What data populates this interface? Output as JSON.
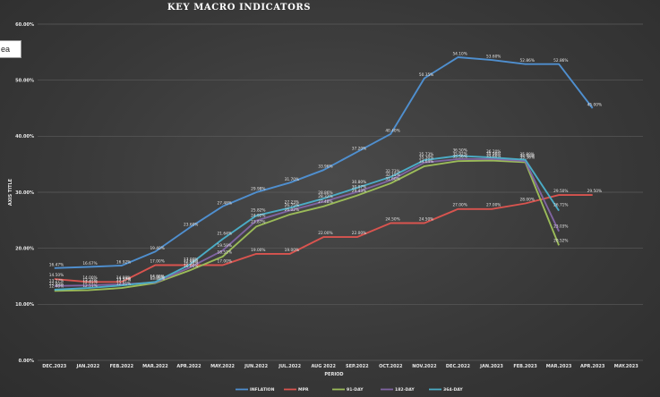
{
  "side_tab": {
    "label": "ea"
  },
  "chart_data": {
    "type": "line",
    "title": "KEY MACRO INDICATORS",
    "xlabel": "PERIOD",
    "ylabel": "AXIS TITLE",
    "ylim": [
      0,
      60
    ],
    "y_ticks": [
      "0.00%",
      "10.00%",
      "20.00%",
      "30.00%",
      "40.00%",
      "50.00%",
      "60.00%"
    ],
    "categories": [
      "DEC.2023",
      "JAN.2022",
      "FEB.2022",
      "MAR.2022",
      "APR.2022",
      "MAY.2022",
      "JUN.2022",
      "JUL.2022",
      "AUG 2022",
      "SEP.2022",
      "OCT.2022",
      "NOV.2022",
      "DEC.2022",
      "JAN.2023",
      "FEB.2023",
      "MAR.2023",
      "APR.2023",
      "MAY.2023"
    ],
    "grid": true,
    "legend": "bottom",
    "series": [
      {
        "name": "INFLATION",
        "color": "#4f8fcf",
        "values": [
          16.47,
          16.67,
          16.92,
          19.4,
          23.6,
          27.48,
          29.98,
          31.7,
          33.96,
          37.2,
          40.4,
          50.35,
          54.1,
          53.6,
          52.86,
          52.86,
          45.0,
          null
        ],
        "labels": [
          "16.47%",
          "16.67%",
          "16.92%",
          "19.40%",
          "23.60%",
          "27.48%",
          "29.98%",
          "31.70%",
          "33.96%",
          "37.20%",
          "40.40%",
          "50.35%",
          "54.10%",
          "53.60%",
          "52.86%",
          "52.86%",
          "45.00%",
          null
        ]
      },
      {
        "name": "MPR",
        "color": "#d9544f",
        "values": [
          14.5,
          14.0,
          14.0,
          17.0,
          17.0,
          17.0,
          19.0,
          19.0,
          22.0,
          22.0,
          24.5,
          24.5,
          27.0,
          27.0,
          28.0,
          29.5,
          29.5,
          null
        ],
        "labels": [
          "14.50%",
          "14.00%",
          "14.00%",
          "17.00%",
          "17.00%",
          "17.00%",
          "19.00%",
          "19.00%",
          "22.00%",
          "22.00%",
          "24.50%",
          "24.50%",
          "27.00%",
          "27.00%",
          "28.00%",
          "29.50%",
          "29.50%",
          null
        ]
      },
      {
        "name": "91-DAY",
        "color": "#9bbb59",
        "values": [
          12.4,
          12.51,
          12.91,
          13.8,
          16.0,
          18.51,
          23.87,
          26.02,
          27.48,
          29.43,
          31.6,
          34.64,
          35.56,
          35.66,
          35.36,
          20.52,
          null,
          null
        ],
        "labels": [
          "12.40%",
          "12.51%",
          "12.91%",
          "13.80%",
          "16.00%",
          "18.51%",
          "23.87%",
          "26.02%",
          "27.48%",
          "29.43%",
          "31.60%",
          "34.64%",
          "35.56%",
          "35.66%",
          "35.36%",
          "20.52%",
          null,
          null
        ]
      },
      {
        "name": "182-DAY",
        "color": "#8064a2",
        "values": [
          13.27,
          13.37,
          13.57,
          13.9,
          16.5,
          19.59,
          24.92,
          26.75,
          28.32,
          30.07,
          32.15,
          35.3,
          35.92,
          35.96,
          35.56,
          23.03,
          null,
          null
        ],
        "labels": [
          "13.27%",
          "13.37%",
          "13.57%",
          "13.90%",
          "16.50%",
          "19.59%",
          "24.92%",
          "26.75%",
          "28.32%",
          "30.07%",
          "32.15%",
          "35.30%",
          "35.92%",
          "35.96%",
          "35.56%",
          "23.03%",
          null,
          null
        ]
      },
      {
        "name": "364-DAY",
        "color": "#4bacc6",
        "values": [
          12.6,
          12.91,
          13.37,
          14.0,
          17.0,
          21.64,
          25.82,
          27.23,
          28.86,
          30.8,
          32.73,
          35.73,
          36.5,
          36.2,
          35.8,
          26.71,
          null,
          null
        ],
        "labels": [
          "12.60%",
          "12.91%",
          "13.37%",
          "14.00%",
          "17.00%",
          "21.64%",
          "25.82%",
          "27.23%",
          "28.86%",
          "30.80%",
          "32.73%",
          "35.73%",
          "36.50%",
          "36.20%",
          "35.80%",
          "26.71%",
          null,
          null
        ]
      }
    ]
  }
}
